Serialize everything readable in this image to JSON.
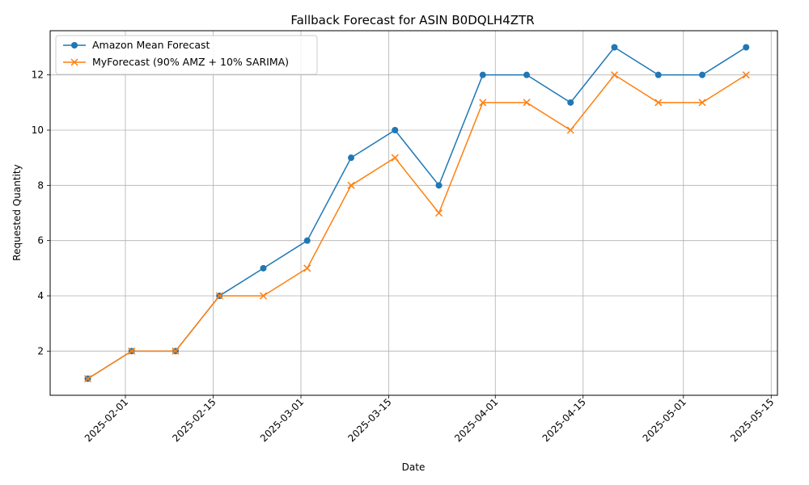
{
  "chart_data": {
    "type": "line",
    "title": "Fallback Forecast for ASIN B0DQLH4ZTR",
    "xlabel": "Date",
    "ylabel": "Requested Quantity",
    "x": [
      "2025-01-26",
      "2025-02-02",
      "2025-02-09",
      "2025-02-16",
      "2025-02-23",
      "2025-03-02",
      "2025-03-09",
      "2025-03-16",
      "2025-03-23",
      "2025-03-30",
      "2025-04-06",
      "2025-04-13",
      "2025-04-20",
      "2025-04-27",
      "2025-05-04",
      "2025-05-11"
    ],
    "series": [
      {
        "name": "Amazon Mean Forecast",
        "color": "#1f77b4",
        "marker": "circle",
        "values": [
          1,
          2,
          2,
          4,
          5,
          6,
          9,
          10,
          8,
          12,
          12,
          11,
          13,
          12,
          12,
          13
        ]
      },
      {
        "name": "MyForecast (90% AMZ + 10% SARIMA)",
        "color": "#ff7f0e",
        "marker": "x",
        "values": [
          1,
          2,
          2,
          4,
          4,
          5,
          8,
          9,
          7,
          11,
          11,
          10,
          12,
          11,
          11,
          12
        ]
      }
    ],
    "xticks": [
      "2025-02-01",
      "2025-02-15",
      "2025-03-01",
      "2025-03-15",
      "2025-04-01",
      "2025-04-15",
      "2025-05-01",
      "2025-05-15"
    ],
    "yticks": [
      2,
      4,
      6,
      8,
      10,
      12
    ],
    "xlim": [
      "2025-01-20",
      "2025-05-16"
    ],
    "ylim": [
      0.4,
      13.6
    ],
    "grid": true,
    "legend": "top-left"
  }
}
